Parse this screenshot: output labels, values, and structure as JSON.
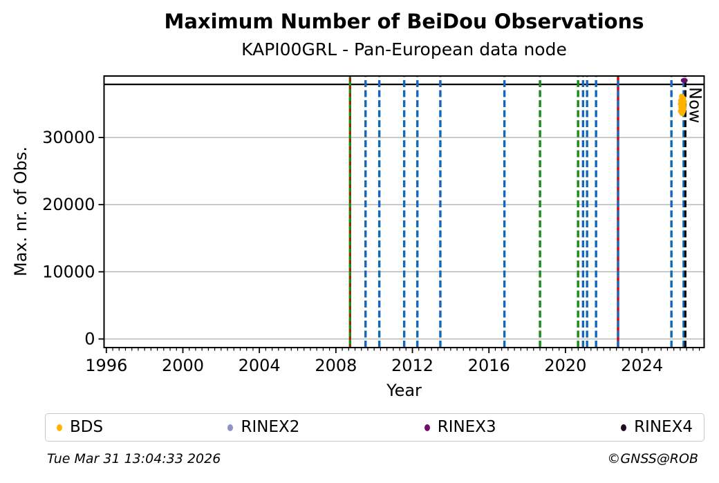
{
  "header": {
    "title": "Maximum Number of BeiDou Observations",
    "subtitle": "KAPI00GRL - Pan-European data node"
  },
  "footer": {
    "timestamp": "Tue Mar 31 13:04:33 2026",
    "copyright": "©GNSS@ROB"
  },
  "legend": {
    "items": [
      {
        "label": "BDS",
        "color": "#FFB300"
      },
      {
        "label": "RINEX2",
        "color": "#9191C8"
      },
      {
        "label": "RINEX3",
        "color": "#6B0E6B"
      },
      {
        "label": "RINEX4",
        "color": "#1E0A1E"
      }
    ]
  },
  "chart_data": {
    "type": "scatter",
    "title": "Maximum Number of BeiDou Observations",
    "subtitle": "KAPI00GRL - Pan-European data node",
    "xlabel": "Year",
    "ylabel": "Max. nr. of Obs.",
    "xlim": [
      1995.88,
      2027.25
    ],
    "ylim": [
      -1280,
      39150
    ],
    "x_major_ticks": [
      1996,
      2000,
      2004,
      2008,
      2012,
      2016,
      2020,
      2024
    ],
    "x_minor_ticks_per_year": 3,
    "y_ticks": [
      0,
      10000,
      20000,
      30000
    ],
    "grid": "horizontal-only",
    "grid_color": "#b2b2b2",
    "colors": {
      "blue": "#1268BD",
      "green": "#178C17",
      "red": "#DC0000",
      "black": "#000000"
    },
    "max_obs_line": {
      "value": 37900,
      "color": "#000000"
    },
    "now_line": {
      "x": 2026.27,
      "label": "Now",
      "color": "#000000",
      "style": "dashed"
    },
    "event_lines": [
      {
        "x": 2008.74,
        "color": "green",
        "style": "solid",
        "overlay_color": "red",
        "overlay_style": "dashed"
      },
      {
        "x": 2009.55,
        "color": "blue",
        "style": "dashed"
      },
      {
        "x": 2010.27,
        "color": "blue",
        "style": "dashed"
      },
      {
        "x": 2011.57,
        "color": "blue",
        "style": "dashed"
      },
      {
        "x": 2012.26,
        "color": "blue",
        "style": "dashed"
      },
      {
        "x": 2013.46,
        "color": "blue",
        "style": "dashed"
      },
      {
        "x": 2016.81,
        "color": "blue",
        "style": "dashed"
      },
      {
        "x": 2018.67,
        "color": "green",
        "style": "dashed"
      },
      {
        "x": 2020.66,
        "color": "green",
        "style": "dashed"
      },
      {
        "x": 2020.92,
        "color": "blue",
        "style": "dashed"
      },
      {
        "x": 2021.13,
        "color": "blue",
        "style": "dashed"
      },
      {
        "x": 2021.6,
        "color": "blue",
        "style": "dashed"
      },
      {
        "x": 2022.75,
        "color": "red",
        "style": "solid",
        "overlay_color": "blue",
        "overlay_style": "dashed"
      },
      {
        "x": 2025.54,
        "color": "blue",
        "style": "dashed"
      },
      {
        "x": 2026.18,
        "color": "blue",
        "style": "dashed"
      }
    ],
    "series": [
      {
        "name": "BDS",
        "color": "#FFB300",
        "marker": "circle",
        "points": [
          [
            2026.08,
            36100
          ],
          [
            2026.16,
            35800
          ],
          [
            2026.04,
            35500
          ],
          [
            2026.2,
            35300
          ],
          [
            2026.02,
            35000
          ],
          [
            2026.12,
            35300
          ],
          [
            2026.17,
            34800
          ],
          [
            2026.05,
            34500
          ],
          [
            2026.13,
            34200
          ],
          [
            2026.19,
            34400
          ],
          [
            2026.03,
            33900
          ],
          [
            2026.1,
            33600
          ],
          [
            2026.15,
            33900
          ]
        ]
      },
      {
        "name": "RINEX2",
        "color": "#9191C8",
        "marker": "circle",
        "points": []
      },
      {
        "name": "RINEX3",
        "color": "#6B0E6B",
        "marker": "ellipse",
        "points": [
          [
            2026.21,
            38500
          ]
        ]
      },
      {
        "name": "RINEX4",
        "color": "#1E0A1E",
        "marker": "circle",
        "points": []
      }
    ]
  }
}
